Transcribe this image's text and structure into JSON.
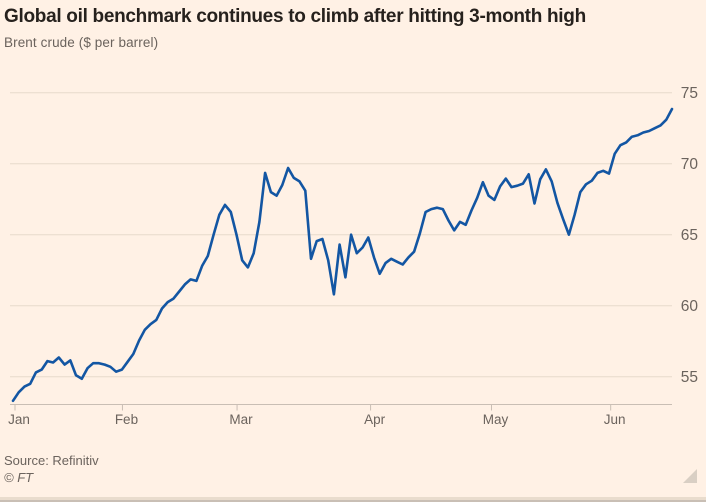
{
  "header": {
    "title": "Global oil benchmark continues to climb after hitting 3-month high",
    "subtitle": "Brent crude ($ per barrel)"
  },
  "footer": {
    "source": "Source: Refinitiv",
    "copyright": "© FT"
  },
  "colors": {
    "background": "#FFF1E5",
    "line": "#1356A3",
    "gridline": "#e7dacb",
    "axis": "#c9beb4",
    "tick_label": "#6b635d",
    "title_text": "#26211d",
    "muted_text": "#6b635d",
    "expand_handle": "#d9cfc4"
  },
  "chart_data": {
    "type": "line",
    "title": "Global oil benchmark continues to climb after hitting 3-month high",
    "subtitle": "Brent crude ($ per barrel)",
    "xlabel": "",
    "ylabel": "$ per barrel",
    "grid": "horizontal",
    "legend_position": "none",
    "y_ticks": [
      55,
      60,
      65,
      70,
      75
    ],
    "ylim": [
      53.0,
      75.5
    ],
    "x_tick_labels": [
      "Jan",
      "Feb",
      "Mar",
      "Apr",
      "May",
      "Jun"
    ],
    "x_tick_positions": [
      0.35,
      19.1,
      39.1,
      62.4,
      83.5,
      104.3
    ],
    "series": [
      {
        "name": "Brent crude",
        "values": [
          53.3,
          53.9,
          54.3,
          54.5,
          55.3,
          55.5,
          56.1,
          56.0,
          56.35,
          55.85,
          56.15,
          55.1,
          54.85,
          55.6,
          55.95,
          55.95,
          55.85,
          55.7,
          55.35,
          55.5,
          56.05,
          56.6,
          57.55,
          58.3,
          58.7,
          59.0,
          59.8,
          60.25,
          60.5,
          61.0,
          61.5,
          61.85,
          61.75,
          62.8,
          63.5,
          65.0,
          66.4,
          67.1,
          66.6,
          65.0,
          63.2,
          62.7,
          63.7,
          65.9,
          69.35,
          68.0,
          67.75,
          68.5,
          69.7,
          69.0,
          68.75,
          68.1,
          63.3,
          64.55,
          64.7,
          63.2,
          60.8,
          64.3,
          62.0,
          65.0,
          63.7,
          64.1,
          64.8,
          63.4,
          62.25,
          63.0,
          63.3,
          63.1,
          62.9,
          63.4,
          63.8,
          65.1,
          66.6,
          66.8,
          66.9,
          66.8,
          66.0,
          65.3,
          65.9,
          65.7,
          66.7,
          67.6,
          68.7,
          67.75,
          67.45,
          68.4,
          68.95,
          68.35,
          68.45,
          68.6,
          69.25,
          67.2,
          68.9,
          69.6,
          68.75,
          67.25,
          66.1,
          65.0,
          66.4,
          68.0,
          68.55,
          68.8,
          69.35,
          69.5,
          69.3,
          70.7,
          71.3,
          71.5,
          71.9,
          72.0,
          72.2,
          72.3,
          72.5,
          72.7,
          73.1,
          73.85
        ]
      }
    ]
  }
}
